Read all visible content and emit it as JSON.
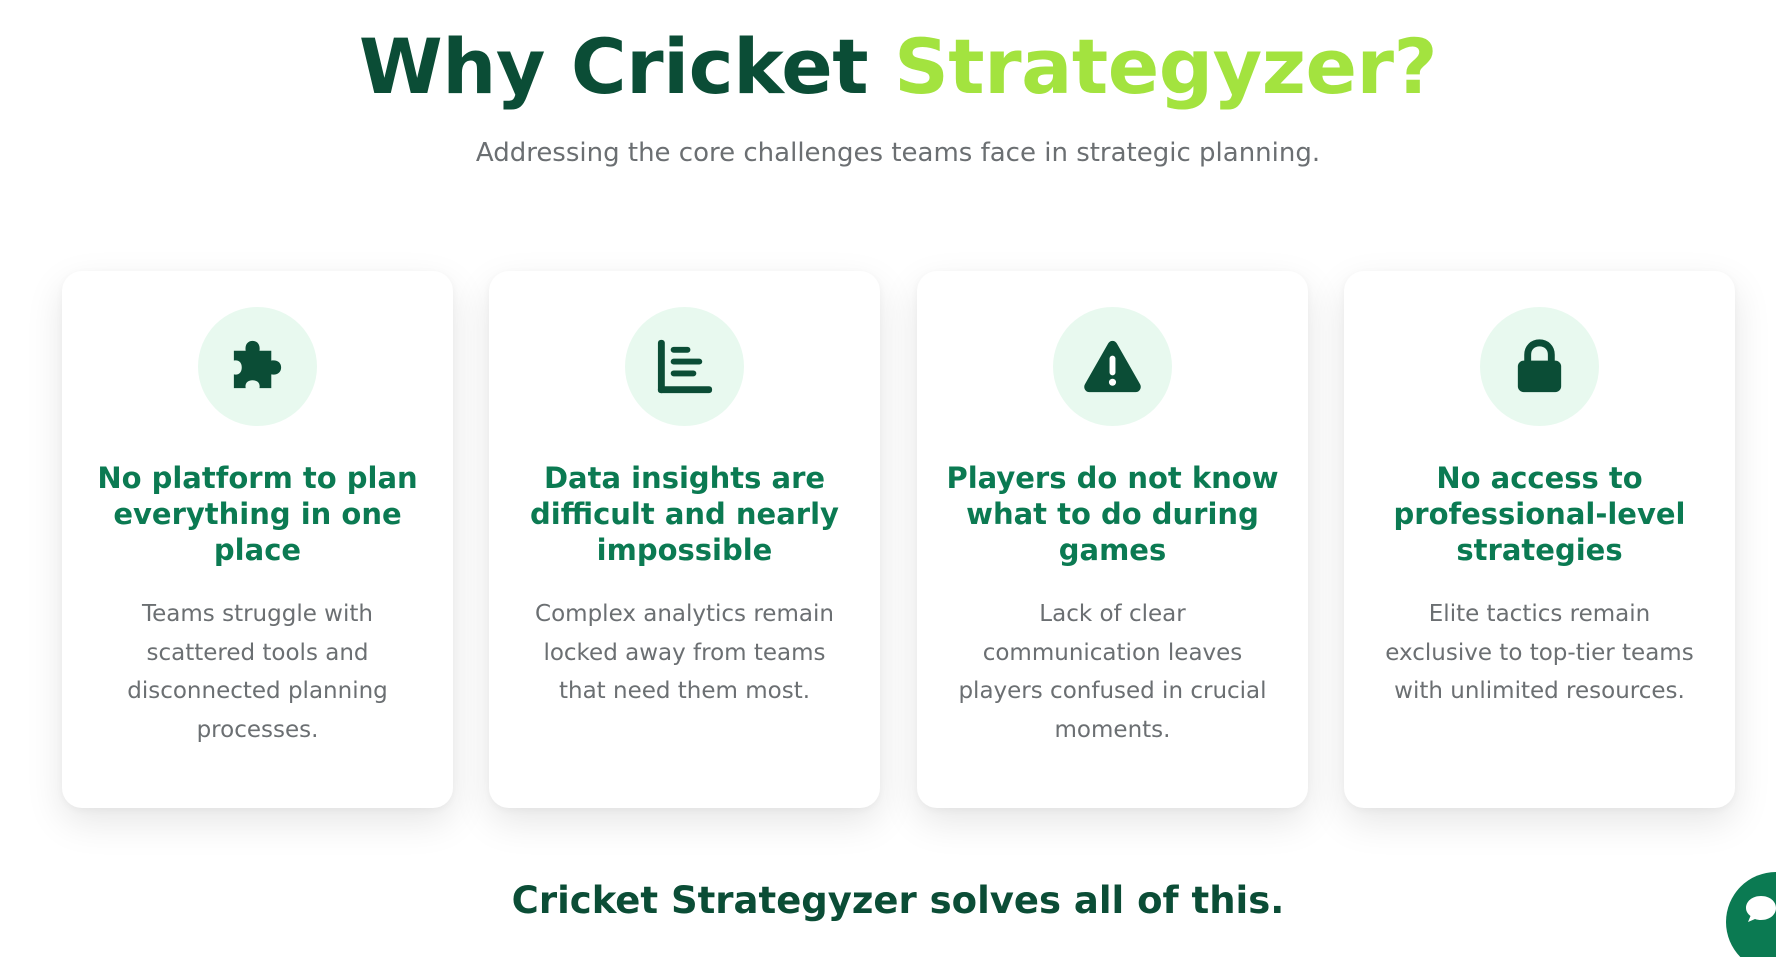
{
  "header": {
    "title_part1": "Why Cricket",
    "title_part2": "Strategyzer?",
    "subtitle": "Addressing the core challenges teams face in strategic planning."
  },
  "cards": [
    {
      "icon": "puzzle-piece-icon",
      "title": "No platform to plan everything in one place",
      "description": "Teams struggle with scattered tools and disconnected planning processes."
    },
    {
      "icon": "bar-chart-icon",
      "title": "Data insights are difficult and nearly impossible",
      "description": "Complex analytics remain locked away from teams that need them most."
    },
    {
      "icon": "warning-triangle-icon",
      "title": "Players do not know what to do during games",
      "description": "Lack of clear communication leaves players confused in crucial moments."
    },
    {
      "icon": "lock-icon",
      "title": "No access to professional-level strategies",
      "description": "Elite tactics remain exclusive to top-tier teams with unlimited resources."
    }
  ],
  "tagline": "Cricket Strategyzer solves all of this.",
  "chat_widget": {
    "icon": "chat-bubble-icon"
  },
  "colors": {
    "dark_green": "#0b4d36",
    "medium_green": "#0b7a52",
    "lime_accent": "#a3e33f",
    "icon_bg": "#e8f9ef",
    "muted_text": "#6b6f72"
  }
}
